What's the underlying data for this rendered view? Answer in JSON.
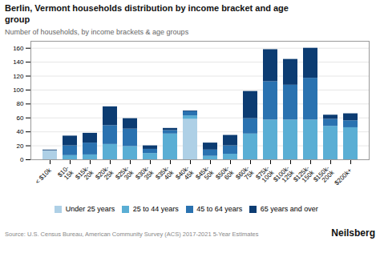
{
  "chart_data": {
    "type": "bar",
    "stacked": true,
    "title": "Berlin, Vermont households distribution by income bracket and age\ngroup",
    "subtitle": "Number of households, by income brackets & age groups",
    "source": "Source: U.S. Census Bureau, American Community Survey (ACS) 2017-2021 5-Year Estimates",
    "annotations": [
      "Neilsberg"
    ],
    "categories": [
      "< $10k",
      "$10-\n15k",
      "$15k-\n20k",
      "$20k-\n25k",
      "$25k-\n30k",
      "$30k-\n35k",
      "$35k-\n40k",
      "$40k-\n45k",
      "$45k-\n50k",
      "$50k-\n60k",
      "$60k-\n75k",
      "$75k-\n100k",
      "$100k-\n125k",
      "$125k-\n150k",
      "$150k-\n200k",
      "$200k+"
    ],
    "series": [
      {
        "name": "Under 25 years",
        "color": "#aed0e6",
        "values": [
          13,
          0,
          0,
          0,
          0,
          0,
          0,
          58,
          0,
          0,
          0,
          0,
          0,
          0,
          0,
          0
        ]
      },
      {
        "name": "25 to 44 years",
        "color": "#5aaed4",
        "values": [
          0,
          6,
          7,
          22,
          19,
          9,
          37,
          5,
          5,
          8,
          37,
          57,
          57,
          57,
          48,
          46
        ]
      },
      {
        "name": "45 to 64 years",
        "color": "#2a72b0",
        "values": [
          0,
          14,
          17,
          27,
          25,
          6,
          5,
          6,
          9,
          12,
          22,
          55,
          50,
          60,
          10,
          10
        ]
      },
      {
        "name": "65 years and over",
        "color": "#0c3c72",
        "values": [
          1,
          14,
          14,
          27,
          15,
          5,
          3,
          1,
          10,
          15,
          39,
          46,
          37,
          43,
          6,
          10
        ]
      }
    ],
    "ylim": [
      0,
      170
    ],
    "yticks": [
      0,
      20,
      40,
      60,
      80,
      100,
      120,
      140,
      160
    ],
    "grid": true,
    "legend": "bottom"
  }
}
